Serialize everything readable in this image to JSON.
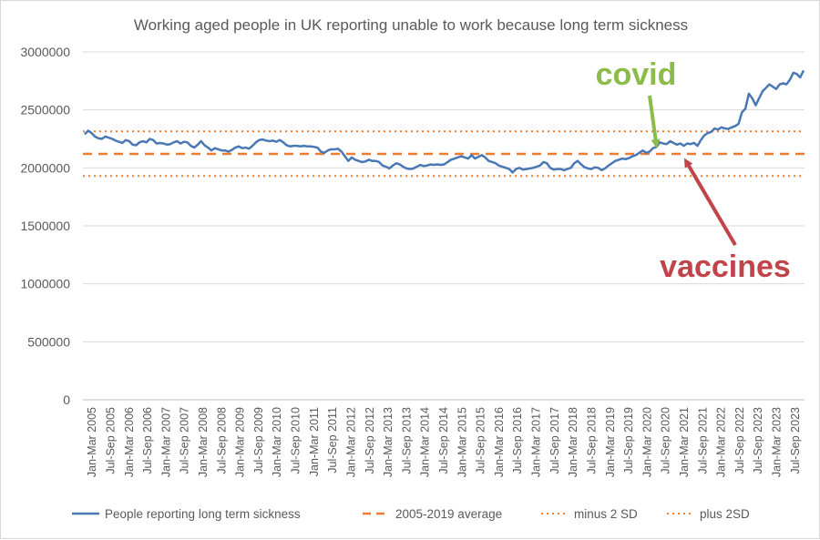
{
  "chart_data": {
    "type": "line",
    "title": "Working aged people in UK reporting unable to work because long term sickness",
    "xlabel": "",
    "ylabel": "",
    "ylim": [
      0,
      3000000
    ],
    "yticks": [
      "3000000",
      "2500000",
      "2000000",
      "1500000",
      "1000000",
      "500000",
      "0"
    ],
    "xticks": [
      "Jan-Mar 2005",
      "Jul-Sep 2005",
      "Jan-Mar 2006",
      "Jul-Sep 2006",
      "Jan-Mar 2007",
      "Jul-Sep 2007",
      "Jan-Mar 2008",
      "Jul-Sep 2008",
      "Jan-Mar 2009",
      "Jul-Sep 2009",
      "Jan-Mar 2010",
      "Jul-Sep 2010",
      "Jan-Mar 2011",
      "Jul-Sep 2011",
      "Jan-Mar 2012",
      "Jul-Sep 2012",
      "Jan-Mar 2013",
      "Jul-Sep 2013",
      "Jan-Mar 2014",
      "Jul-Sep 2014",
      "Jan-Mar 2015",
      "Jul-Sep 2015",
      "Jan-Mar 2016",
      "Jul-Sep 2016",
      "Jan-Mar 2017",
      "Jul-Sep 2017",
      "Jan-Mar 2018",
      "Jul-Sep 2018",
      "Jan-Mar 2019",
      "Jul-Sep 2019",
      "Jan-Mar 2020",
      "Jul-Sep 2020",
      "Jan-Mar 2021",
      "Jul-Sep 2021",
      "Jan-Mar 2022",
      "Jul-Sep 2022",
      "Jul-Sep 2023",
      "Jan-Mar 2023",
      "Jul-Sep 2023"
    ],
    "grid": true,
    "legend_position": "bottom",
    "series": [
      {
        "name": "People reporting long term sickness",
        "color": "#4a78b5",
        "style": "solid",
        "values": [
          2290000,
          2320000,
          2300000,
          2270000,
          2255000,
          2250000,
          2270000,
          2260000,
          2250000,
          2235000,
          2225000,
          2215000,
          2240000,
          2230000,
          2200000,
          2195000,
          2220000,
          2230000,
          2220000,
          2250000,
          2240000,
          2210000,
          2215000,
          2210000,
          2200000,
          2205000,
          2220000,
          2230000,
          2210000,
          2225000,
          2220000,
          2190000,
          2175000,
          2200000,
          2230000,
          2195000,
          2175000,
          2150000,
          2170000,
          2160000,
          2150000,
          2150000,
          2140000,
          2155000,
          2175000,
          2185000,
          2170000,
          2175000,
          2165000,
          2190000,
          2220000,
          2240000,
          2245000,
          2235000,
          2230000,
          2235000,
          2225000,
          2240000,
          2220000,
          2195000,
          2185000,
          2190000,
          2190000,
          2185000,
          2190000,
          2185000,
          2185000,
          2180000,
          2175000,
          2140000,
          2130000,
          2150000,
          2160000,
          2160000,
          2165000,
          2140000,
          2100000,
          2060000,
          2090000,
          2070000,
          2060000,
          2050000,
          2055000,
          2070000,
          2060000,
          2060000,
          2050000,
          2020000,
          2010000,
          1995000,
          2020000,
          2040000,
          2030000,
          2010000,
          1995000,
          1990000,
          1995000,
          2010000,
          2025000,
          2015000,
          2020000,
          2030000,
          2025000,
          2030000,
          2025000,
          2030000,
          2050000,
          2070000,
          2080000,
          2090000,
          2100000,
          2090000,
          2080000,
          2110000,
          2080000,
          2095000,
          2110000,
          2090000,
          2060000,
          2050000,
          2040000,
          2020000,
          2010000,
          2000000,
          1990000,
          1960000,
          1990000,
          2000000,
          1985000,
          1990000,
          1995000,
          2000000,
          2010000,
          2020000,
          2050000,
          2040000,
          2000000,
          1985000,
          1990000,
          1990000,
          1980000,
          1990000,
          2000000,
          2040000,
          2060000,
          2030000,
          2005000,
          1995000,
          1990000,
          2005000,
          2000000,
          1980000,
          1995000,
          2020000,
          2040000,
          2060000,
          2070000,
          2080000,
          2075000,
          2085000,
          2100000,
          2110000,
          2130000,
          2150000,
          2130000,
          2140000,
          2170000,
          2180000,
          2220000,
          2210000,
          2205000,
          2230000,
          2215000,
          2200000,
          2210000,
          2190000,
          2210000,
          2205000,
          2215000,
          2190000,
          2240000,
          2280000,
          2300000,
          2310000,
          2340000,
          2330000,
          2350000,
          2340000,
          2335000,
          2350000,
          2360000,
          2380000,
          2480000,
          2510000,
          2640000,
          2600000,
          2540000,
          2600000,
          2660000,
          2690000,
          2720000,
          2700000,
          2680000,
          2720000,
          2730000,
          2720000,
          2760000,
          2820000,
          2810000,
          2780000,
          2840000
        ]
      },
      {
        "name": "2005-2019 average",
        "color": "#ed7d31",
        "style": "dashed",
        "value": 2120000
      },
      {
        "name": "minus 2 SD",
        "color": "#ed7d31",
        "style": "dotted",
        "value": 1930000
      },
      {
        "name": "plus 2SD",
        "color": "#ed7d31",
        "style": "dotted",
        "value": 2315000
      }
    ],
    "annotations": [
      {
        "text": "covid",
        "color": "#8cbb4a",
        "points_to": "Jan-Mar 2020"
      },
      {
        "text": "vaccines",
        "color": "#c0444a",
        "points_to": "Jan-Mar 2021"
      }
    ]
  }
}
